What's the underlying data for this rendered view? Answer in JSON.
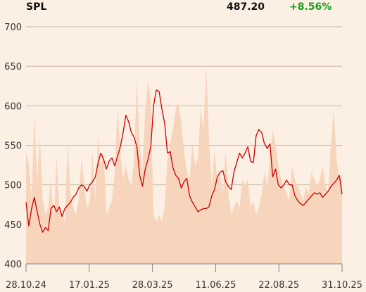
{
  "header": {
    "symbol": "SPL",
    "price": "487.20",
    "change": "+8.56%"
  },
  "colors": {
    "background": "#fcefe3",
    "line": "#cc0000",
    "volume": "#f6d5bc",
    "grid": "#c9b8a9",
    "change": "#1a9e1a"
  },
  "chart_data": {
    "type": "line",
    "title": "SPL",
    "xlabel": "",
    "ylabel": "",
    "ylim": [
      400,
      700
    ],
    "yticks": [
      400,
      450,
      500,
      550,
      600,
      650,
      700
    ],
    "xtick_labels": [
      "28.10.24",
      "17.01.25",
      "28.03.25",
      "11.06.25",
      "22.08.25",
      "31.10.25"
    ],
    "grid": true,
    "series": [
      {
        "type": "line",
        "values": [
          478,
          448,
          470,
          484,
          466,
          450,
          440,
          446,
          442,
          470,
          474,
          466,
          472,
          460,
          470,
          474,
          478,
          484,
          488,
          496,
          500,
          498,
          492,
          500,
          504,
          510,
          528,
          540,
          532,
          520,
          530,
          534,
          524,
          536,
          548,
          566,
          588,
          580,
          566,
          560,
          548,
          512,
          498,
          520,
          532,
          548,
          600,
          620,
          618,
          596,
          578,
          540,
          542,
          522,
          512,
          508,
          496,
          504,
          508,
          486,
          478,
          472,
          466,
          468,
          470,
          470,
          472,
          486,
          494,
          510,
          516,
          518,
          504,
          498,
          494,
          516,
          528,
          540,
          534,
          540,
          548,
          530,
          528,
          562,
          570,
          566,
          552,
          546,
          552,
          510,
          520,
          500,
          496,
          500,
          506,
          500,
          500,
          486,
          480,
          476,
          474,
          478,
          482,
          486,
          490,
          488,
          490,
          484,
          488,
          492,
          498,
          502,
          506,
          512,
          488
        ],
        "volume_area": [
          160,
          140,
          90,
          210,
          120,
          180,
          90,
          70,
          80,
          120,
          60,
          150,
          80,
          70,
          60,
          170,
          100,
          80,
          70,
          90,
          150,
          110,
          80,
          90,
          160,
          90,
          180,
          140,
          160,
          70,
          80,
          90,
          130,
          220,
          160,
          120,
          140,
          120,
          110,
          150,
          260,
          170,
          130,
          220,
          260,
          230,
          70,
          60,
          70,
          60,
          80,
          150,
          170,
          190,
          220,
          230,
          200,
          160,
          130,
          120,
          170,
          140,
          150,
          220,
          190,
          280,
          180,
          110,
          160,
          120,
          130,
          100,
          160,
          100,
          70,
          80,
          90,
          80,
          120,
          110,
          120,
          80,
          90,
          70,
          80,
          100,
          130,
          110,
          150,
          190,
          170,
          140,
          120,
          110,
          100,
          90,
          140,
          120,
          110,
          100,
          90,
          110,
          100,
          130,
          120,
          110,
          120,
          140,
          110,
          100,
          170,
          220,
          150,
          120,
          130
        ]
      }
    ]
  }
}
